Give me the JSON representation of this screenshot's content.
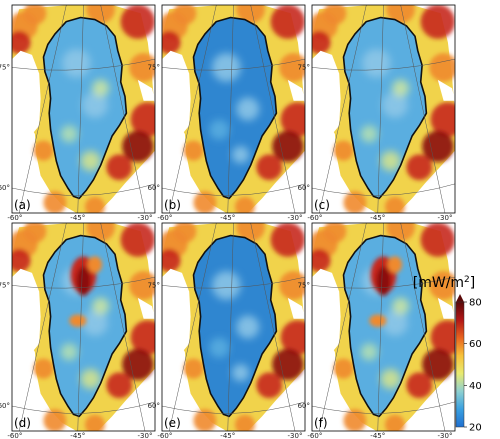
{
  "figure": {
    "panels": [
      {
        "label": "(a)",
        "variant": "smooth"
      },
      {
        "label": "(b)",
        "variant": "smooth_cool"
      },
      {
        "label": "(c)",
        "variant": "smooth"
      },
      {
        "label": "(d)",
        "variant": "hotspot"
      },
      {
        "label": "(e)",
        "variant": "smooth_cool"
      },
      {
        "label": "(f)",
        "variant": "hotspot"
      }
    ],
    "lat_labels": [
      "75°",
      "60°"
    ],
    "lon_labels": [
      "-60°",
      "-45°",
      "-30°"
    ]
  },
  "colorbar": {
    "unit_label": "[mW/m",
    "unit_sup": "2",
    "unit_close": "]",
    "ticks": [
      "80",
      "60",
      "40",
      "20"
    ],
    "tick_values": [
      80,
      60,
      40,
      20
    ],
    "range": [
      20,
      80
    ],
    "colors": [
      "#1f6fd0",
      "#3aa0e0",
      "#8fd0d0",
      "#e8ea70",
      "#f7c23a",
      "#e8631f",
      "#b11515",
      "#5a0808"
    ]
  },
  "colors": {
    "ice_blue": "#5aaee0",
    "ice_light": "#8fc8e8",
    "ice_deep": "#2f86d0",
    "coast_yellow": "#f1d34b",
    "coast_orange": "#ef8a2e",
    "coast_red": "#c7271d",
    "hot_red": "#8b0f0f",
    "ice_margin": "#111111"
  }
}
